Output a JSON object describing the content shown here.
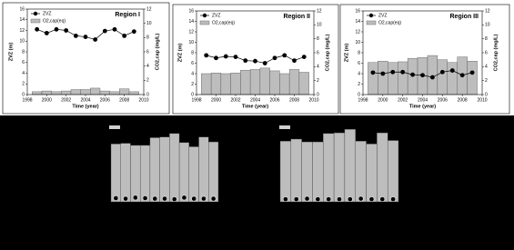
{
  "chart_data": [
    {
      "type": "bar_line",
      "title": "Region I",
      "x_label": "Time (year)",
      "y_label": "ZVZ (m)",
      "y2_label": "CO2,cap (mg/L)",
      "x": [
        1999,
        2000,
        2001,
        2002,
        2003,
        2004,
        2005,
        2006,
        2007,
        2008,
        2009
      ],
      "xlim": [
        1998,
        2010
      ],
      "xticks": [
        1998,
        2000,
        2002,
        2004,
        2006,
        2008,
        2010
      ],
      "ylim": [
        0,
        16
      ],
      "yticks": [
        0,
        2,
        4,
        6,
        8,
        10,
        12,
        14,
        16
      ],
      "y2lim": [
        0,
        12
      ],
      "y2ticks": [
        0,
        2,
        4,
        6,
        8,
        10,
        12
      ],
      "legend": "upper left",
      "series": [
        {
          "name": "ZVZ",
          "color": "#000000",
          "values": [
            12.2,
            11.5,
            12.2,
            12.0,
            11.0,
            10.8,
            10.3,
            11.9,
            12.2,
            11.0,
            11.8
          ]
        },
        {
          "name": "O2,cap(eq)",
          "color": "#bdbdbd",
          "axis": "y2",
          "values": [
            0.4,
            0.5,
            0.4,
            0.5,
            0.7,
            0.7,
            0.9,
            0.5,
            0.4,
            0.8,
            0.4
          ]
        }
      ]
    },
    {
      "type": "bar_line",
      "title": "Region II",
      "x_label": "Time (year)",
      "y_label": "ZVZ (m)",
      "y2_label": "CO2,cap (mg/L)",
      "x": [
        1999,
        2000,
        2001,
        2002,
        2003,
        2004,
        2005,
        2006,
        2007,
        2008,
        2009
      ],
      "xlim": [
        1998,
        2010
      ],
      "xticks": [
        1998,
        2000,
        2002,
        2004,
        2006,
        2008,
        2010
      ],
      "ylim": [
        0,
        16
      ],
      "yticks": [
        0,
        2,
        4,
        6,
        8,
        10,
        12,
        14,
        16
      ],
      "y2lim": [
        0,
        12
      ],
      "y2ticks": [
        0,
        2,
        4,
        6,
        8,
        10,
        12
      ],
      "legend": "upper left",
      "series": [
        {
          "name": "ZVZ",
          "color": "#000000",
          "values": [
            7.5,
            7.0,
            7.3,
            7.2,
            6.5,
            6.4,
            6.0,
            7.0,
            7.5,
            6.5,
            7.2
          ]
        },
        {
          "name": "O2,cap(eq)",
          "color": "#bdbdbd",
          "axis": "y2",
          "values": [
            3.0,
            3.1,
            3.0,
            3.1,
            3.5,
            3.6,
            3.8,
            3.4,
            3.0,
            3.6,
            3.2
          ]
        }
      ]
    },
    {
      "type": "bar_line",
      "title": "Region III",
      "x_label": "Time (year)",
      "y_label": "ZVZ (m)",
      "y2_label": "CO2,cap (mg/L)",
      "x": [
        1999,
        2000,
        2001,
        2002,
        2003,
        2004,
        2005,
        2006,
        2007,
        2008,
        2009
      ],
      "xlim": [
        1998,
        2010
      ],
      "xticks": [
        1998,
        2000,
        2002,
        2004,
        2006,
        2008,
        2010
      ],
      "ylim": [
        0,
        16
      ],
      "yticks": [
        0,
        2,
        4,
        6,
        8,
        10,
        12,
        14,
        16
      ],
      "y2lim": [
        0,
        12
      ],
      "y2ticks": [
        0,
        2,
        4,
        6,
        8,
        10,
        12
      ],
      "legend": "upper left",
      "series": [
        {
          "name": "ZVZ",
          "color": "#000000",
          "values": [
            4.2,
            4.0,
            4.3,
            4.3,
            3.8,
            3.7,
            3.3,
            4.3,
            4.6,
            3.7,
            4.2
          ]
        },
        {
          "name": "O2,cap(eq)",
          "color": "#bdbdbd",
          "axis": "y2",
          "values": [
            4.6,
            4.8,
            4.6,
            4.7,
            5.2,
            5.3,
            5.6,
            5.0,
            4.6,
            5.4,
            4.8
          ]
        }
      ]
    },
    {
      "type": "bar_line",
      "x": [
        1999,
        2000,
        2001,
        2002,
        2003,
        2004,
        2005,
        2006,
        2007,
        2008,
        2009
      ],
      "xlim": [
        1998.5,
        2009.5
      ],
      "ylim": [
        0,
        16
      ],
      "y2lim": [
        0,
        12
      ],
      "series": [
        {
          "color": "#000000",
          "values": [
            0.7,
            0.6,
            0.8,
            0.7,
            0.6,
            0.6,
            0.5,
            0.8,
            0.6,
            0.6,
            0.6
          ]
        },
        {
          "color": "#bdbdbd",
          "axis": "y2",
          "values": [
            8.3,
            8.4,
            8.1,
            8.1,
            9.2,
            9.3,
            9.8,
            8.5,
            7.9,
            9.3,
            8.6
          ]
        }
      ]
    },
    {
      "type": "bar_line",
      "x": [
        1999,
        2000,
        2001,
        2002,
        2003,
        2004,
        2005,
        2006,
        2007,
        2008,
        2009
      ],
      "xlim": [
        1998.5,
        2009.5
      ],
      "ylim": [
        0,
        16
      ],
      "y2lim": [
        0,
        12
      ],
      "series": [
        {
          "color": "#000000",
          "values": [
            0.5,
            0.5,
            0.6,
            0.5,
            0.5,
            0.5,
            0.5,
            0.6,
            0.5,
            0.5,
            0.5
          ]
        },
        {
          "color": "#bdbdbd",
          "axis": "y2",
          "values": [
            8.7,
            9.0,
            8.6,
            8.6,
            9.8,
            9.9,
            10.4,
            8.7,
            8.3,
            9.9,
            8.8
          ]
        }
      ]
    }
  ]
}
